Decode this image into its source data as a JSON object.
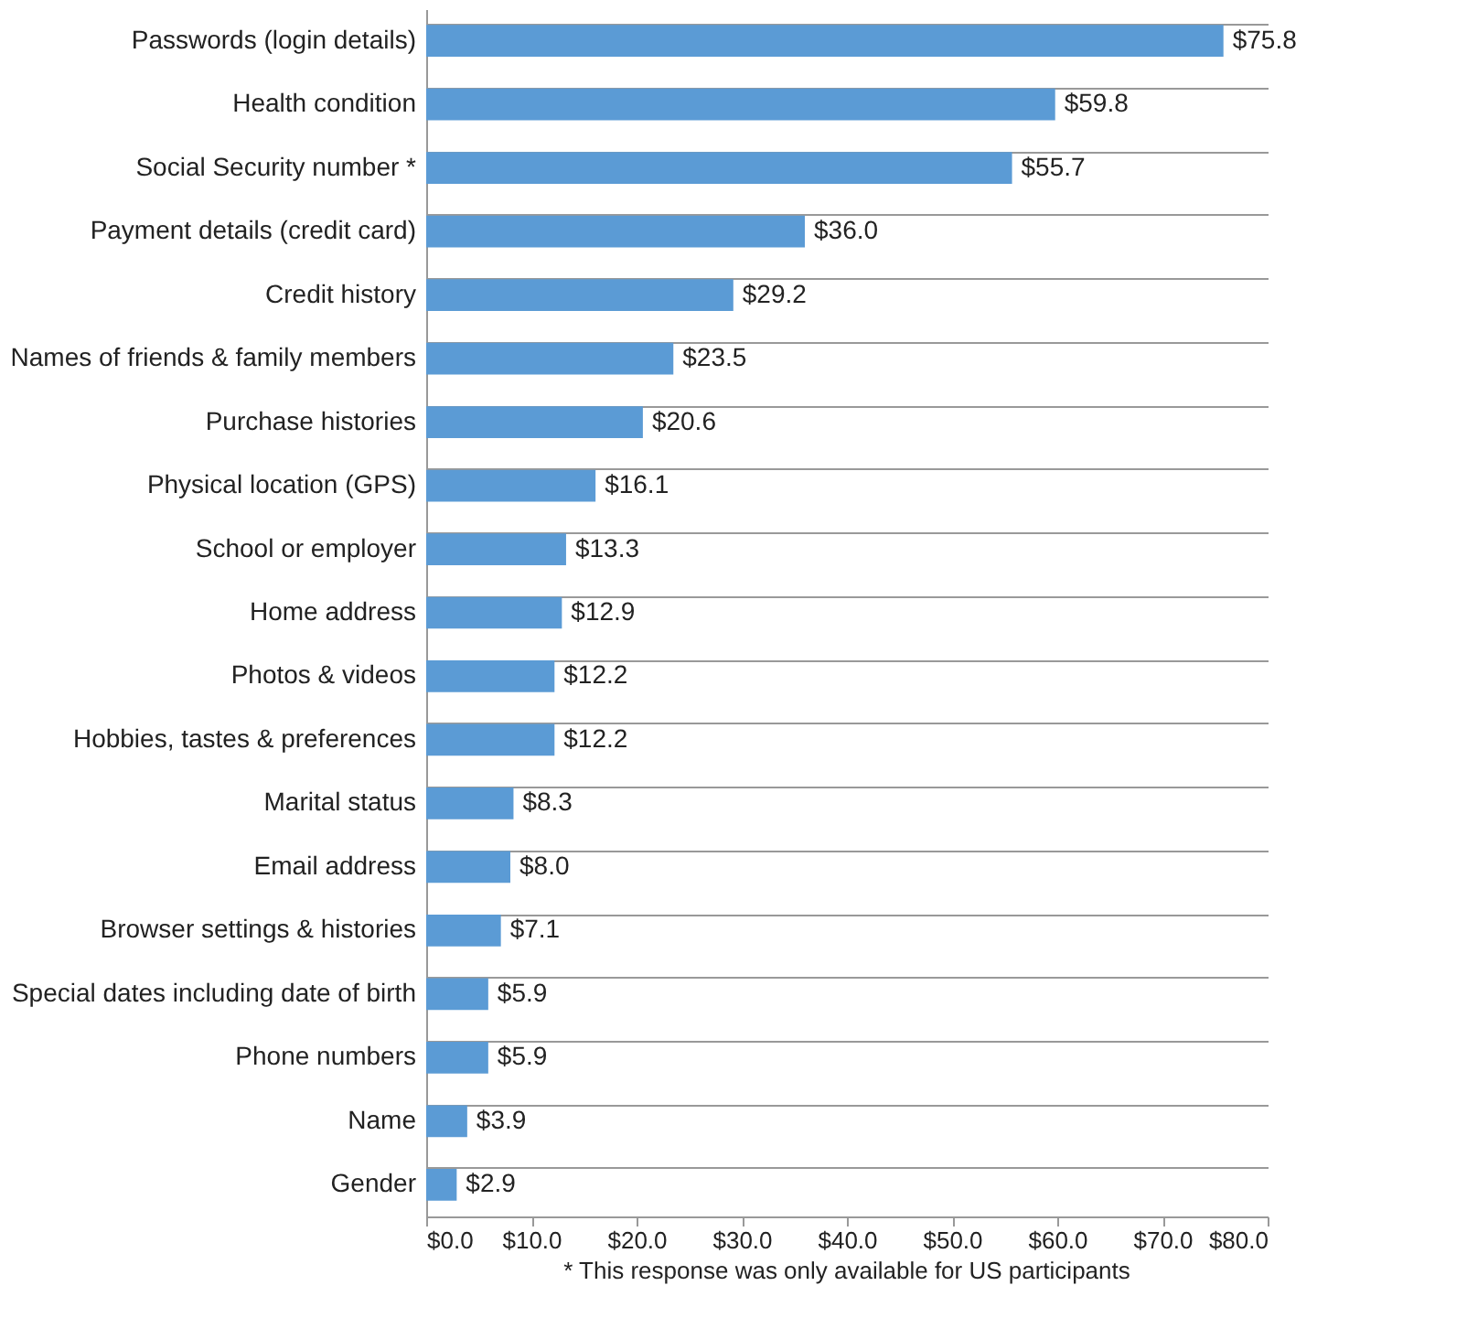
{
  "chart_data": {
    "type": "bar",
    "orientation": "horizontal",
    "color": "#5b9bd5",
    "categories": [
      "Passwords (login details)",
      "Health condition",
      "Social Security number *",
      "Payment details (credit card)",
      "Credit history",
      "Names of friends & family members",
      "Purchase histories",
      "Physical location (GPS)",
      "School or employer",
      "Home address",
      "Photos & videos",
      "Hobbies, tastes & preferences",
      "Marital status",
      "Email address",
      "Browser settings & histories",
      "Special dates including date of birth",
      "Phone numbers",
      "Name",
      "Gender"
    ],
    "values": [
      75.8,
      59.8,
      55.7,
      36.0,
      29.2,
      23.5,
      20.6,
      16.1,
      13.3,
      12.9,
      12.2,
      12.2,
      8.3,
      8.0,
      7.1,
      5.9,
      5.9,
      3.9,
      2.9
    ],
    "value_labels": [
      "$75.8",
      "$59.8",
      "$55.7",
      "$36.0",
      "$29.2",
      "$23.5",
      "$20.6",
      "$16.1",
      "$13.3",
      "$12.9",
      "$12.2",
      "$12.2",
      "$8.3",
      "$8.0",
      "$7.1",
      "$5.9",
      "$5.9",
      "$3.9",
      "$2.9"
    ],
    "xlim": [
      0,
      80
    ],
    "xticks": [
      {
        "value": 0,
        "label": "$0.0"
      },
      {
        "value": 10,
        "label": "$10.0"
      },
      {
        "value": 20,
        "label": "$20.0"
      },
      {
        "value": 30,
        "label": "$30.0"
      },
      {
        "value": 40,
        "label": "$40.0"
      },
      {
        "value": 50,
        "label": "$50.0"
      },
      {
        "value": 60,
        "label": "$60.0"
      },
      {
        "value": 70,
        "label": "$70.0"
      },
      {
        "value": 80,
        "label": "$80.0"
      }
    ],
    "grid": "y",
    "annotations": [
      "* This response was only available for US participants"
    ]
  }
}
